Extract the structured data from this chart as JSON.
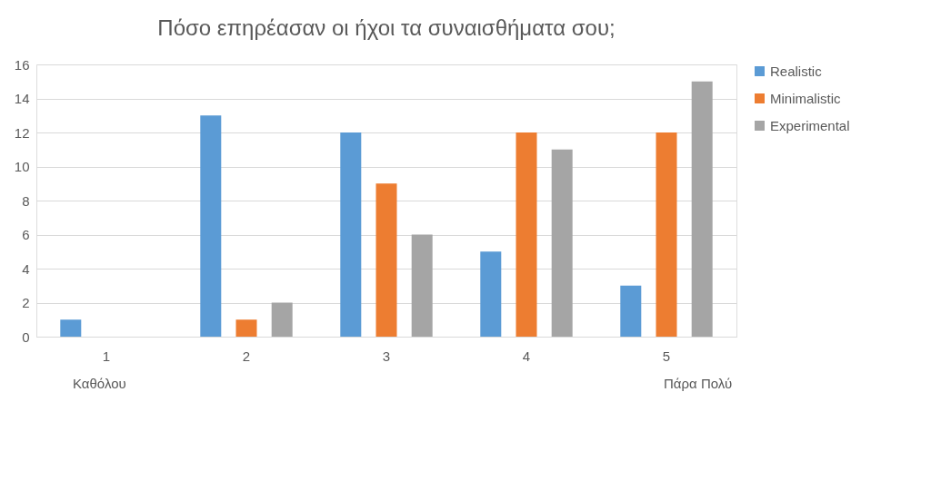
{
  "chart_data": {
    "type": "bar",
    "title": "Πόσο επηρέασαν οι ήχοι τα συναισθήματα σου;",
    "categories": [
      "1",
      "2",
      "3",
      "4",
      "5"
    ],
    "series": [
      {
        "name": "Realistic",
        "color": "#5b9bd5",
        "values": [
          1,
          13,
          12,
          5,
          3
        ]
      },
      {
        "name": "Minimalistic",
        "color": "#ed7d31",
        "values": [
          0,
          1,
          9,
          12,
          12
        ]
      },
      {
        "name": "Experimental",
        "color": "#a5a5a5",
        "values": [
          0,
          2,
          6,
          11,
          15
        ]
      }
    ],
    "ylim": [
      0,
      16
    ],
    "yticks": [
      0,
      2,
      4,
      6,
      8,
      10,
      12,
      14,
      16
    ],
    "grid": "y",
    "legend": "right",
    "annotations": [
      "Καθόλου",
      "Πάρα Πολύ"
    ]
  }
}
